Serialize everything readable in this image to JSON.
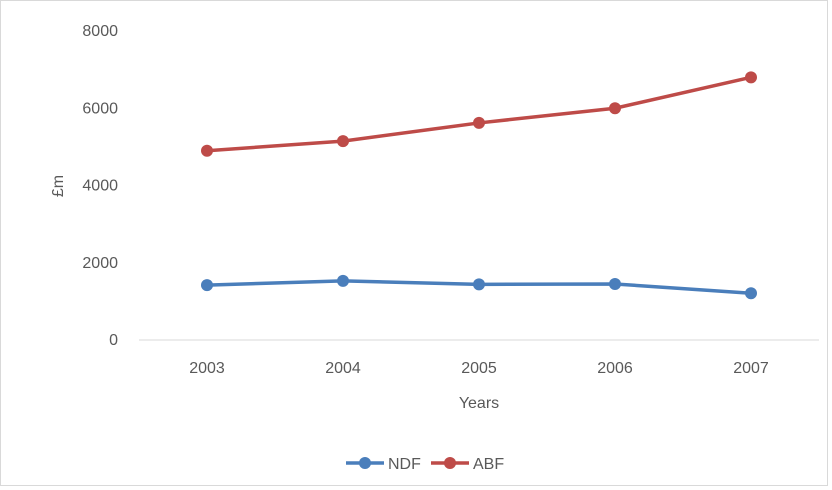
{
  "chart_data": {
    "type": "line",
    "title": "",
    "xlabel": "Years",
    "ylabel": "£m",
    "categories": [
      "2003",
      "2004",
      "2005",
      "2006",
      "2007"
    ],
    "ylim": [
      0,
      8000
    ],
    "yticks": [
      0,
      2000,
      4000,
      6000,
      8000
    ],
    "grid": false,
    "legend_position": "bottom",
    "series": [
      {
        "name": "NDF",
        "color": "#4a7ebb",
        "values": [
          1420,
          1530,
          1440,
          1450,
          1210
        ]
      },
      {
        "name": "ABF",
        "color": "#be4b48",
        "values": [
          4900,
          5150,
          5620,
          6000,
          6800
        ]
      }
    ]
  }
}
